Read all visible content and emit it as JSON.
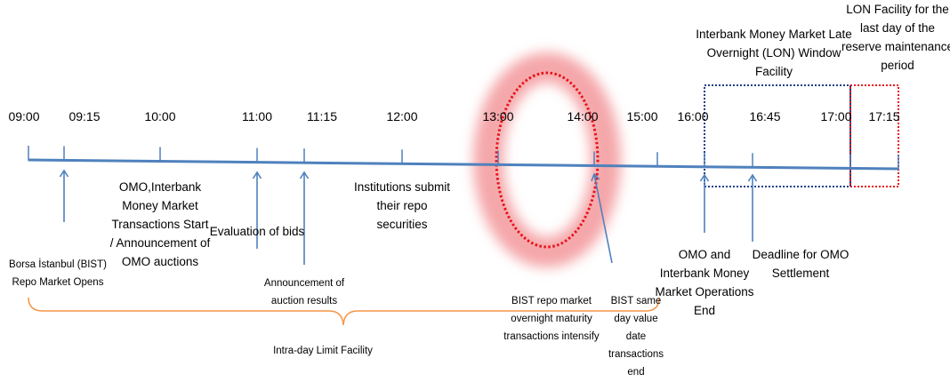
{
  "times": [
    "09:00",
    "09:15",
    "10:00",
    "11:00",
    "11:15",
    "12:00",
    "13:00",
    "14:00",
    "15:00",
    "16:00",
    "16:45",
    "17:00",
    "17:15"
  ],
  "labels": {
    "lon_window": [
      "Interbank Money Market Late",
      "Overnight (LON) Window",
      "Facility"
    ],
    "lon_last_day": [
      "LON Facility for the",
      "last day of the",
      "reserve maintenance",
      "period"
    ],
    "omo_start": [
      "OMO,Interbank",
      "Money Market",
      "Transactions Start",
      "/ Announcement of",
      "OMO auctions"
    ],
    "evaluation": [
      "Evaluation of bids"
    ],
    "institutions": [
      "Institutions submit",
      "their repo",
      "securities"
    ],
    "bist_opens": [
      "Borsa İstanbul (BIST)",
      "Repo Market Opens"
    ],
    "auction_results": [
      "Announcement of",
      "auction results"
    ],
    "repo_intensify": [
      "BIST repo market",
      "overnight maturity",
      "transactions intensify"
    ],
    "same_day_end": [
      "BIST same",
      "day value",
      "date",
      "transactions",
      "end"
    ],
    "omo_end": [
      "OMO and",
      "Interbank Money",
      "Market Operations",
      "End"
    ],
    "omo_deadline": [
      "Deadline for OMO",
      "Settlement"
    ],
    "intraday": [
      "Intra-day Limit Facility"
    ]
  },
  "colors": {
    "timeline": "#4f81bd",
    "brace": "#f79646",
    "lon_box": "#1f3f8a",
    "last_day_box": "#e8141b",
    "highlight": "#e8141b"
  }
}
